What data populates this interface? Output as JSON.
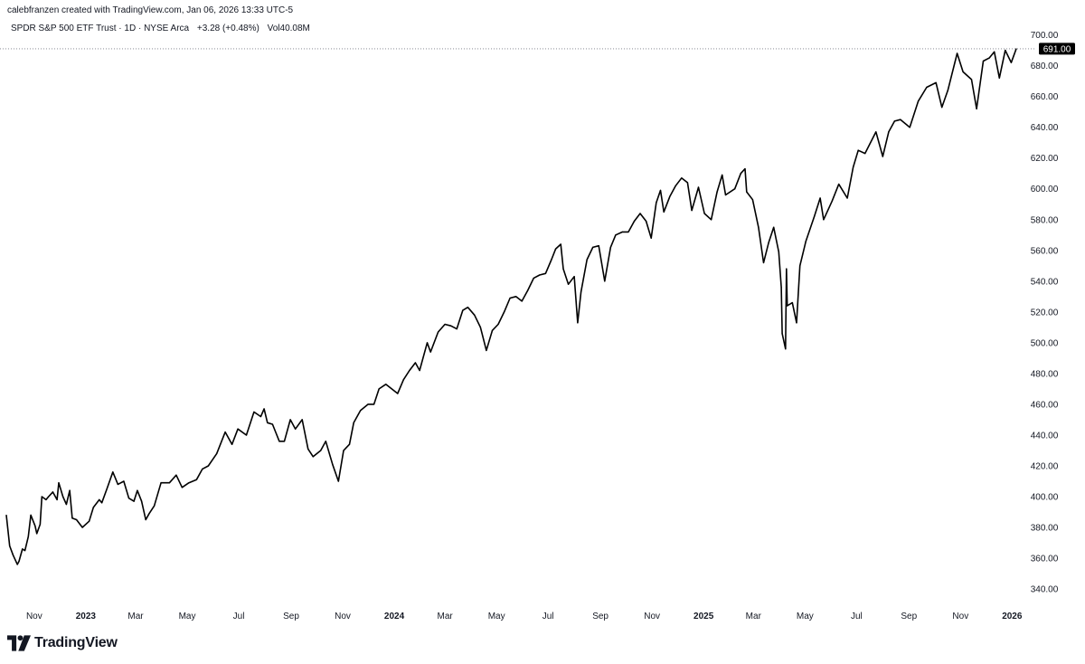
{
  "header": {
    "credit": "calebfranzen created with TradingView.com, Jan 06, 2026 13:33 UTC-5",
    "symbol": "SPDR S&P 500 ETF Trust · 1D · NYSE Arca",
    "change": "+3.28 (+0.48%)",
    "volume": "Vol40.08M"
  },
  "branding": {
    "wordmark": "TradingView",
    "icon": "tradingview-logo-icon"
  },
  "colors": {
    "line": "#000000",
    "badge_bg": "#000000",
    "badge_text": "#ffffff",
    "axis_text": "#131722"
  },
  "chart_data": {
    "type": "line",
    "title": "SPDR S&P 500 ETF Trust · 1D · NYSE Arca",
    "x_unit": "date",
    "y_unit": "price (USD)",
    "xlim": [
      "2022-09-29",
      "2026-01-06"
    ],
    "ylim": [
      333,
      708
    ],
    "y_ticks": [
      "340.00",
      "360.00",
      "380.00",
      "400.00",
      "420.00",
      "440.00",
      "460.00",
      "480.00",
      "500.00",
      "520.00",
      "540.00",
      "560.00",
      "580.00",
      "600.00",
      "620.00",
      "640.00",
      "660.00",
      "680.00",
      "700.00"
    ],
    "x_ticks": [
      {
        "label": "Nov",
        "date": "2022-11-01",
        "bold": false
      },
      {
        "label": "2023",
        "date": "2023-01-01",
        "bold": true
      },
      {
        "label": "Mar",
        "date": "2023-03-01",
        "bold": false
      },
      {
        "label": "May",
        "date": "2023-05-01",
        "bold": false
      },
      {
        "label": "Jul",
        "date": "2023-07-01",
        "bold": false
      },
      {
        "label": "Sep",
        "date": "2023-09-01",
        "bold": false
      },
      {
        "label": "Nov",
        "date": "2023-11-01",
        "bold": false
      },
      {
        "label": "2024",
        "date": "2024-01-01",
        "bold": true
      },
      {
        "label": "Mar",
        "date": "2024-03-01",
        "bold": false
      },
      {
        "label": "May",
        "date": "2024-05-01",
        "bold": false
      },
      {
        "label": "Jul",
        "date": "2024-07-01",
        "bold": false
      },
      {
        "label": "Sep",
        "date": "2024-09-01",
        "bold": false
      },
      {
        "label": "Nov",
        "date": "2024-11-01",
        "bold": false
      },
      {
        "label": "2025",
        "date": "2025-01-01",
        "bold": true
      },
      {
        "label": "Mar",
        "date": "2025-03-01",
        "bold": false
      },
      {
        "label": "May",
        "date": "2025-05-01",
        "bold": false
      },
      {
        "label": "Jul",
        "date": "2025-07-01",
        "bold": false
      },
      {
        "label": "Sep",
        "date": "2025-09-01",
        "bold": false
      },
      {
        "label": "Nov",
        "date": "2025-11-01",
        "bold": false
      },
      {
        "label": "2026",
        "date": "2026-01-01",
        "bold": true
      }
    ],
    "last_price": 691.0,
    "last_price_label": "691.00",
    "grid": false,
    "series": [
      {
        "values": [
          [
            "2022-09-29",
            388
          ],
          [
            "2022-10-03",
            368
          ],
          [
            "2022-10-07",
            362
          ],
          [
            "2022-10-12",
            356
          ],
          [
            "2022-10-14",
            358
          ],
          [
            "2022-10-18",
            366
          ],
          [
            "2022-10-21",
            365
          ],
          [
            "2022-10-25",
            374
          ],
          [
            "2022-10-28",
            388
          ],
          [
            "2022-11-02",
            381
          ],
          [
            "2022-11-04",
            376
          ],
          [
            "2022-11-08",
            382
          ],
          [
            "2022-11-10",
            400
          ],
          [
            "2022-11-15",
            398
          ],
          [
            "2022-11-18",
            400
          ],
          [
            "2022-11-23",
            403
          ],
          [
            "2022-11-28",
            398
          ],
          [
            "2022-11-30",
            409
          ],
          [
            "2022-12-05",
            400
          ],
          [
            "2022-12-09",
            395
          ],
          [
            "2022-12-13",
            404
          ],
          [
            "2022-12-16",
            386
          ],
          [
            "2022-12-21",
            385
          ],
          [
            "2022-12-28",
            380
          ],
          [
            "2023-01-05",
            384
          ],
          [
            "2023-01-10",
            393
          ],
          [
            "2023-01-17",
            398
          ],
          [
            "2023-01-20",
            396
          ],
          [
            "2023-01-26",
            405
          ],
          [
            "2023-02-02",
            416
          ],
          [
            "2023-02-08",
            408
          ],
          [
            "2023-02-15",
            410
          ],
          [
            "2023-02-21",
            399
          ],
          [
            "2023-02-27",
            397
          ],
          [
            "2023-03-03",
            404
          ],
          [
            "2023-03-08",
            397
          ],
          [
            "2023-03-13",
            385
          ],
          [
            "2023-03-17",
            389
          ],
          [
            "2023-03-23",
            394
          ],
          [
            "2023-03-31",
            409
          ],
          [
            "2023-04-10",
            409
          ],
          [
            "2023-04-18",
            414
          ],
          [
            "2023-04-25",
            406
          ],
          [
            "2023-05-03",
            409
          ],
          [
            "2023-05-12",
            411
          ],
          [
            "2023-05-19",
            418
          ],
          [
            "2023-05-26",
            420
          ],
          [
            "2023-06-05",
            428
          ],
          [
            "2023-06-15",
            442
          ],
          [
            "2023-06-23",
            434
          ],
          [
            "2023-06-30",
            444
          ],
          [
            "2023-07-10",
            440
          ],
          [
            "2023-07-19",
            455
          ],
          [
            "2023-07-27",
            452
          ],
          [
            "2023-07-31",
            457
          ],
          [
            "2023-08-04",
            448
          ],
          [
            "2023-08-10",
            447
          ],
          [
            "2023-08-18",
            436
          ],
          [
            "2023-08-24",
            436
          ],
          [
            "2023-08-31",
            450
          ],
          [
            "2023-09-06",
            444
          ],
          [
            "2023-09-14",
            450
          ],
          [
            "2023-09-21",
            431
          ],
          [
            "2023-09-27",
            426
          ],
          [
            "2023-10-06",
            430
          ],
          [
            "2023-10-12",
            436
          ],
          [
            "2023-10-20",
            421
          ],
          [
            "2023-10-27",
            410
          ],
          [
            "2023-11-02",
            430
          ],
          [
            "2023-11-09",
            434
          ],
          [
            "2023-11-14",
            448
          ],
          [
            "2023-11-22",
            456
          ],
          [
            "2023-12-01",
            460
          ],
          [
            "2023-12-08",
            460
          ],
          [
            "2023-12-14",
            470
          ],
          [
            "2023-12-22",
            473
          ],
          [
            "2024-01-05",
            467
          ],
          [
            "2024-01-12",
            476
          ],
          [
            "2024-01-19",
            482
          ],
          [
            "2024-01-26",
            487
          ],
          [
            "2024-01-31",
            482
          ],
          [
            "2024-02-09",
            500
          ],
          [
            "2024-02-13",
            494
          ],
          [
            "2024-02-22",
            507
          ],
          [
            "2024-03-01",
            512
          ],
          [
            "2024-03-08",
            511
          ],
          [
            "2024-03-15",
            509
          ],
          [
            "2024-03-22",
            521
          ],
          [
            "2024-03-28",
            523
          ],
          [
            "2024-04-05",
            518
          ],
          [
            "2024-04-12",
            510
          ],
          [
            "2024-04-19",
            495
          ],
          [
            "2024-04-26",
            508
          ],
          [
            "2024-05-03",
            512
          ],
          [
            "2024-05-10",
            520
          ],
          [
            "2024-05-17",
            529
          ],
          [
            "2024-05-24",
            530
          ],
          [
            "2024-05-31",
            527
          ],
          [
            "2024-06-07",
            534
          ],
          [
            "2024-06-14",
            542
          ],
          [
            "2024-06-21",
            544
          ],
          [
            "2024-06-28",
            545
          ],
          [
            "2024-07-05",
            554
          ],
          [
            "2024-07-10",
            561
          ],
          [
            "2024-07-16",
            564
          ],
          [
            "2024-07-19",
            548
          ],
          [
            "2024-07-25",
            538
          ],
          [
            "2024-08-01",
            543
          ],
          [
            "2024-08-05",
            513
          ],
          [
            "2024-08-09",
            533
          ],
          [
            "2024-08-16",
            554
          ],
          [
            "2024-08-23",
            562
          ],
          [
            "2024-08-30",
            563
          ],
          [
            "2024-09-06",
            540
          ],
          [
            "2024-09-13",
            562
          ],
          [
            "2024-09-19",
            570
          ],
          [
            "2024-09-27",
            572
          ],
          [
            "2024-10-04",
            572
          ],
          [
            "2024-10-11",
            579
          ],
          [
            "2024-10-18",
            584
          ],
          [
            "2024-10-25",
            579
          ],
          [
            "2024-10-31",
            568
          ],
          [
            "2024-11-06",
            591
          ],
          [
            "2024-11-11",
            599
          ],
          [
            "2024-11-15",
            585
          ],
          [
            "2024-11-22",
            595
          ],
          [
            "2024-11-29",
            602
          ],
          [
            "2024-12-06",
            607
          ],
          [
            "2024-12-13",
            604
          ],
          [
            "2024-12-18",
            586
          ],
          [
            "2024-12-26",
            601
          ],
          [
            "2025-01-02",
            584
          ],
          [
            "2025-01-10",
            580
          ],
          [
            "2025-01-17",
            598
          ],
          [
            "2025-01-23",
            609
          ],
          [
            "2025-01-27",
            596
          ],
          [
            "2025-02-07",
            600
          ],
          [
            "2025-02-14",
            610
          ],
          [
            "2025-02-19",
            613
          ],
          [
            "2025-02-21",
            598
          ],
          [
            "2025-02-28",
            593
          ],
          [
            "2025-03-07",
            575
          ],
          [
            "2025-03-13",
            552
          ],
          [
            "2025-03-19",
            565
          ],
          [
            "2025-03-25",
            575
          ],
          [
            "2025-03-31",
            559
          ],
          [
            "2025-04-03",
            536
          ],
          [
            "2025-04-04",
            506
          ],
          [
            "2025-04-08",
            496
          ],
          [
            "2025-04-09",
            548
          ],
          [
            "2025-04-10",
            524
          ],
          [
            "2025-04-16",
            526
          ],
          [
            "2025-04-21",
            513
          ],
          [
            "2025-04-25",
            550
          ],
          [
            "2025-05-02",
            566
          ],
          [
            "2025-05-12",
            582
          ],
          [
            "2025-05-19",
            594
          ],
          [
            "2025-05-23",
            580
          ],
          [
            "2025-06-02",
            592
          ],
          [
            "2025-06-10",
            603
          ],
          [
            "2025-06-20",
            594
          ],
          [
            "2025-06-27",
            614
          ],
          [
            "2025-07-03",
            625
          ],
          [
            "2025-07-11",
            623
          ],
          [
            "2025-07-24",
            637
          ],
          [
            "2025-08-01",
            621
          ],
          [
            "2025-08-08",
            637
          ],
          [
            "2025-08-15",
            644
          ],
          [
            "2025-08-22",
            645
          ],
          [
            "2025-09-02",
            640
          ],
          [
            "2025-09-12",
            657
          ],
          [
            "2025-09-22",
            666
          ],
          [
            "2025-10-03",
            669
          ],
          [
            "2025-10-10",
            653
          ],
          [
            "2025-10-17",
            664
          ],
          [
            "2025-10-28",
            688
          ],
          [
            "2025-11-04",
            676
          ],
          [
            "2025-11-14",
            671
          ],
          [
            "2025-11-20",
            652
          ],
          [
            "2025-11-28",
            683
          ],
          [
            "2025-12-05",
            685
          ],
          [
            "2025-12-11",
            689
          ],
          [
            "2025-12-17",
            672
          ],
          [
            "2025-12-24",
            690
          ],
          [
            "2025-12-31",
            682
          ],
          [
            "2026-01-06",
            691
          ]
        ]
      }
    ]
  }
}
